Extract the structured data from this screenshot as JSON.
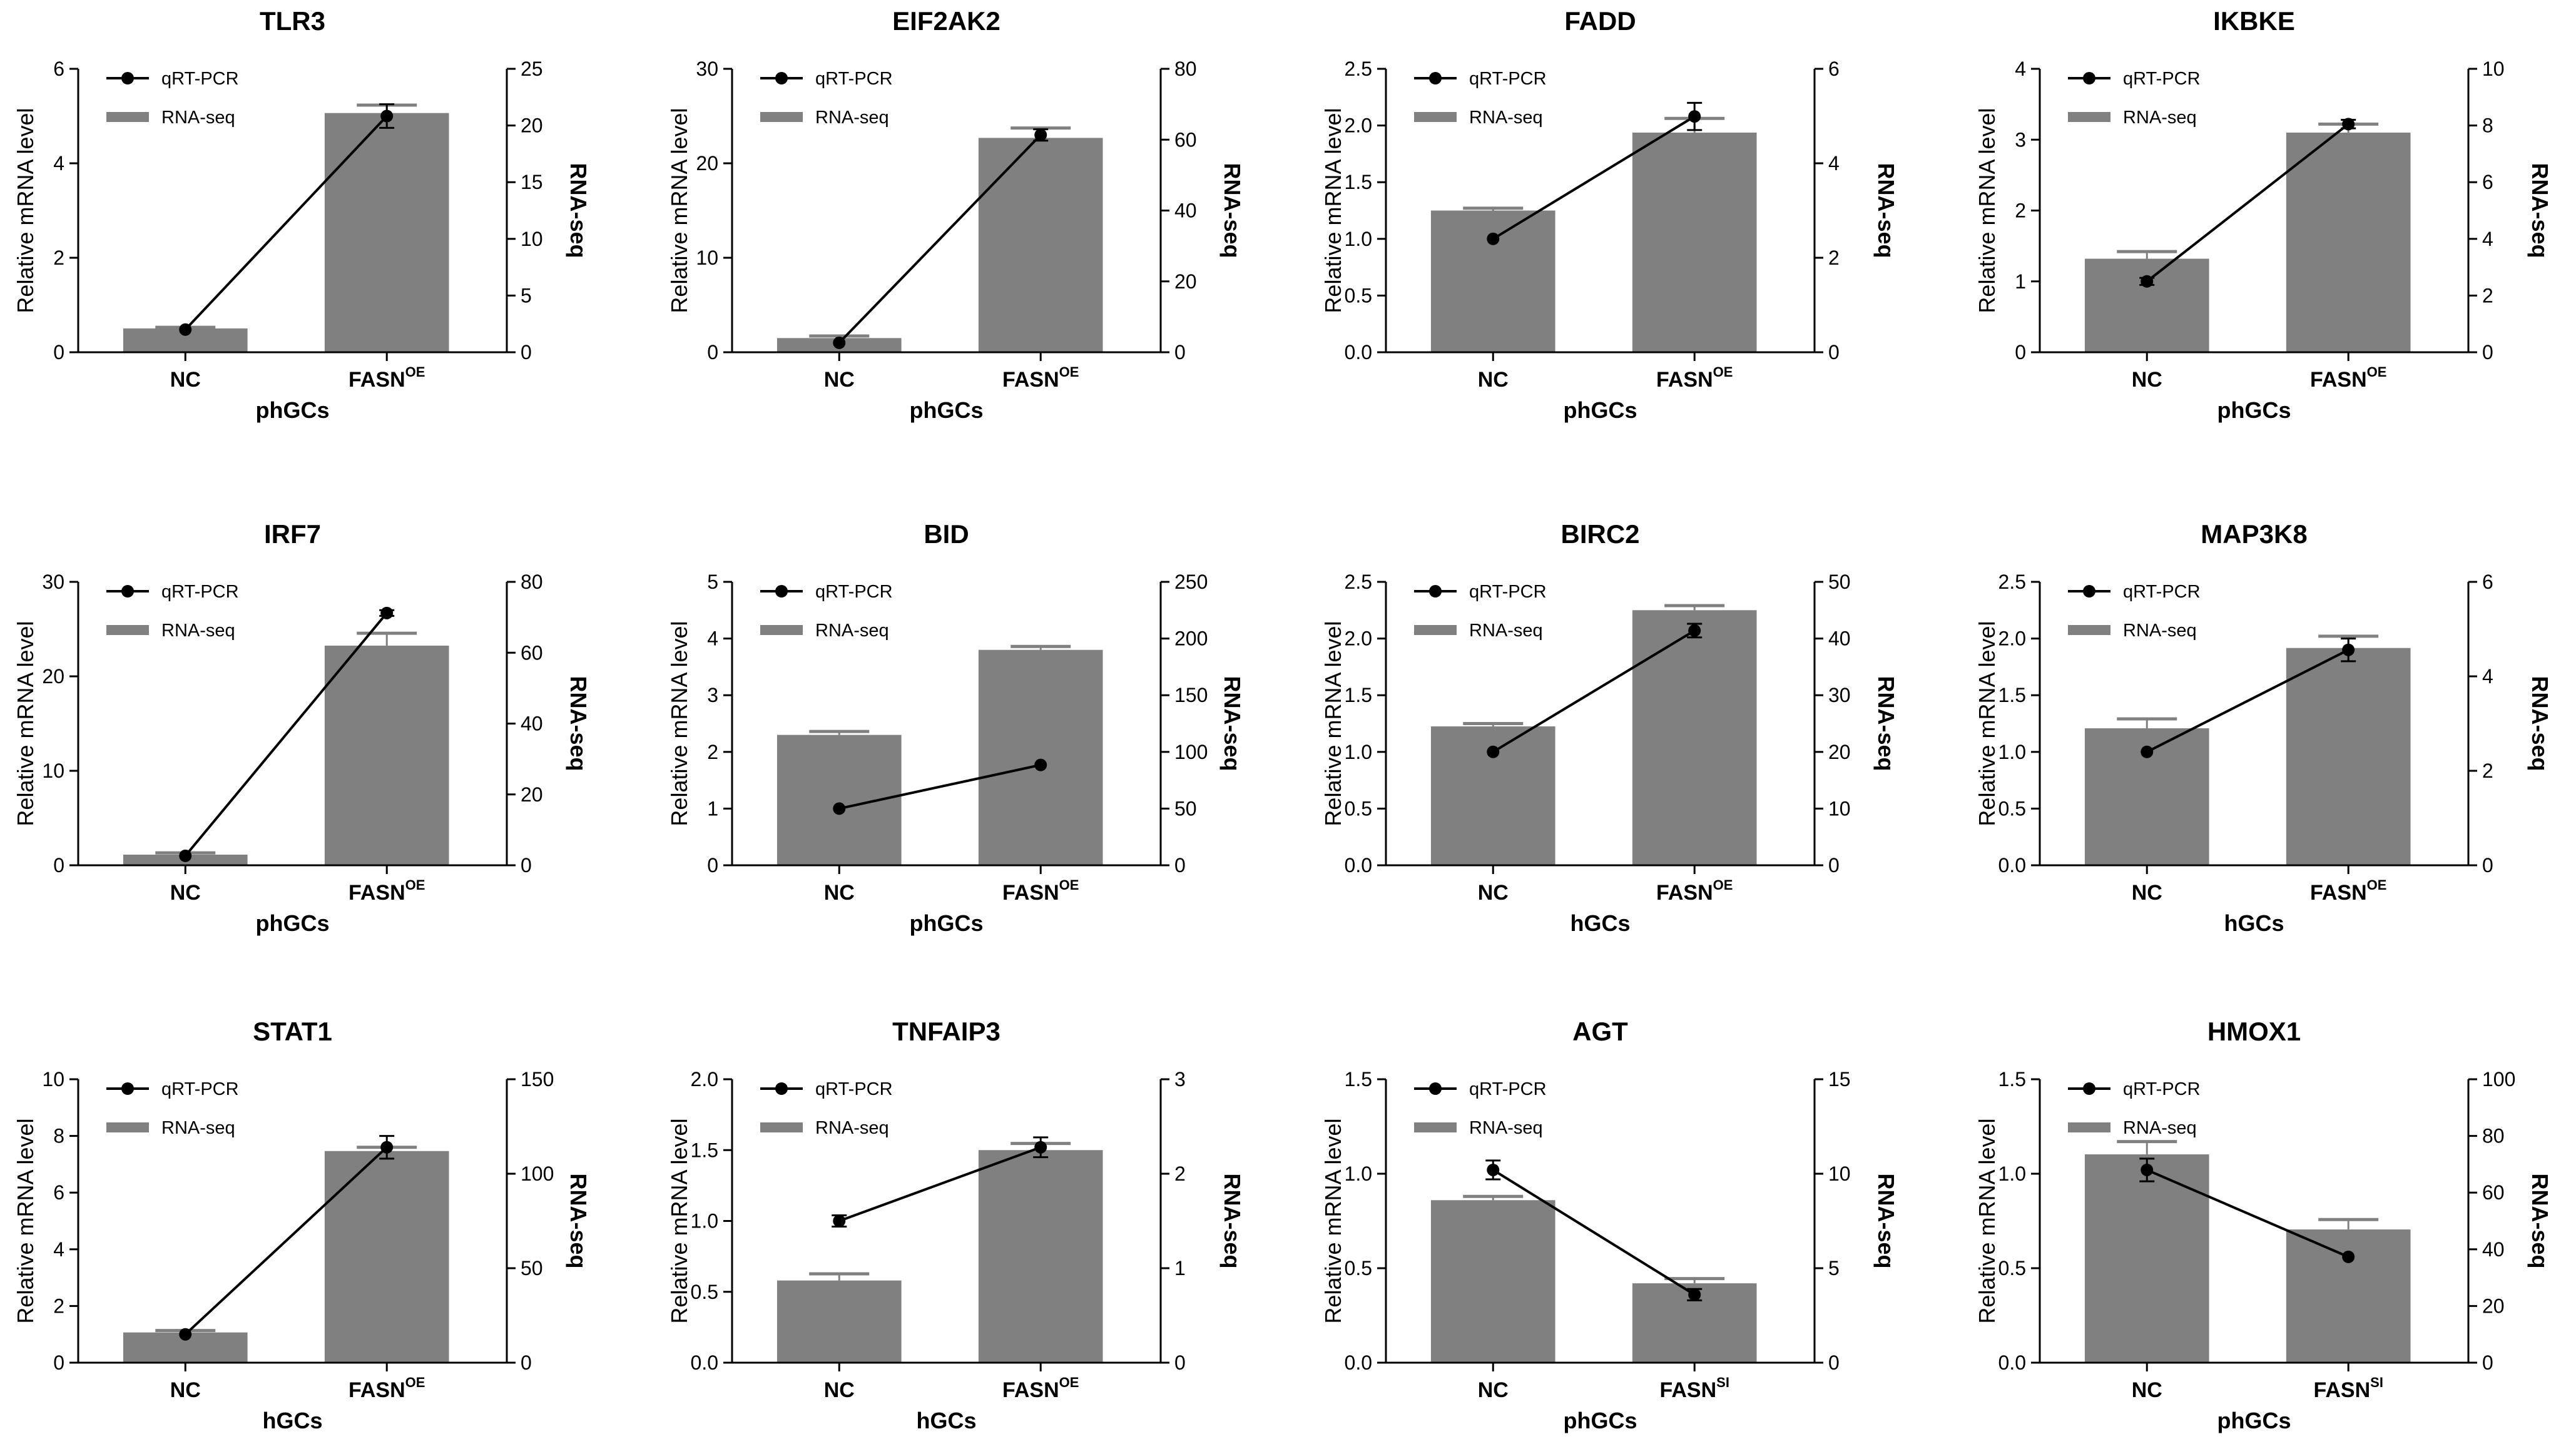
{
  "chart_data": [
    {
      "type": "bar+line",
      "title": "TLR3",
      "xlabel": "phGCs",
      "ylabel": "Relative mRNA level",
      "y2label": "RNA-seq",
      "categories": [
        {
          "base": "NC",
          "sup": ""
        },
        {
          "base": "FASN",
          "sup": "OE"
        }
      ],
      "ylim": [
        0,
        6
      ],
      "yticks": [
        0,
        2,
        4,
        6
      ],
      "y2lim": [
        0,
        25
      ],
      "y2ticks": [
        0,
        5,
        10,
        15,
        20,
        25
      ],
      "series": [
        {
          "name": "qRT-PCR",
          "type": "line",
          "axis": "left",
          "values": [
            0.48,
            5.0
          ],
          "errors": [
            0.0,
            0.25
          ]
        },
        {
          "name": "RNA-seq",
          "type": "bar",
          "axis": "right",
          "values": [
            2.1,
            21.1
          ],
          "errors": [
            0.1,
            0.7
          ]
        }
      ]
    },
    {
      "type": "bar+line",
      "title": "EIF2AK2",
      "xlabel": "phGCs",
      "ylabel": "Relative mRNA level",
      "y2label": "RNA-seq",
      "categories": [
        {
          "base": "NC",
          "sup": ""
        },
        {
          "base": "FASN",
          "sup": "OE"
        }
      ],
      "ylim": [
        0,
        30
      ],
      "yticks": [
        0,
        10,
        20,
        30
      ],
      "y2lim": [
        0,
        80
      ],
      "y2ticks": [
        0,
        20,
        40,
        60,
        80
      ],
      "series": [
        {
          "name": "qRT-PCR",
          "type": "line",
          "axis": "left",
          "values": [
            1.0,
            23.0
          ],
          "errors": [
            0.0,
            0.6
          ]
        },
        {
          "name": "RNA-seq",
          "type": "bar",
          "axis": "right",
          "values": [
            4.0,
            60.5
          ],
          "errors": [
            0.6,
            2.8
          ]
        }
      ]
    },
    {
      "type": "bar+line",
      "title": "FADD",
      "xlabel": "phGCs",
      "ylabel": "Relative mRNA level",
      "y2label": "RNA-seq",
      "categories": [
        {
          "base": "NC",
          "sup": ""
        },
        {
          "base": "FASN",
          "sup": "OE"
        }
      ],
      "ylim": [
        0,
        2.5
      ],
      "yticks": [
        "0.0",
        "0.5",
        "1.0",
        "1.5",
        "2.0",
        "2.5"
      ],
      "y2lim": [
        0,
        6
      ],
      "y2ticks": [
        0,
        2,
        4,
        6
      ],
      "series": [
        {
          "name": "qRT-PCR",
          "type": "line",
          "axis": "left",
          "values": [
            1.0,
            2.08
          ],
          "errors": [
            0.0,
            0.12
          ]
        },
        {
          "name": "RNA-seq",
          "type": "bar",
          "axis": "right",
          "values": [
            3.0,
            4.65
          ],
          "errors": [
            0.05,
            0.3
          ]
        }
      ]
    },
    {
      "type": "bar+line",
      "title": "IKBKE",
      "xlabel": "phGCs",
      "ylabel": "Relative mRNA level",
      "y2label": "RNA-seq",
      "categories": [
        {
          "base": "NC",
          "sup": ""
        },
        {
          "base": "FASN",
          "sup": "OE"
        }
      ],
      "ylim": [
        0,
        4
      ],
      "yticks": [
        0,
        1,
        2,
        3,
        4
      ],
      "y2lim": [
        0,
        10
      ],
      "y2ticks": [
        0,
        2,
        4,
        6,
        8,
        10
      ],
      "series": [
        {
          "name": "qRT-PCR",
          "type": "line",
          "axis": "left",
          "values": [
            1.0,
            3.22
          ],
          "errors": [
            0.05,
            0.06
          ]
        },
        {
          "name": "RNA-seq",
          "type": "bar",
          "axis": "right",
          "values": [
            3.3,
            7.75
          ],
          "errors": [
            0.25,
            0.3
          ]
        }
      ]
    },
    {
      "type": "bar+line",
      "title": "IRF7",
      "xlabel": "phGCs",
      "ylabel": "Relative mRNA level",
      "y2label": "RNA-seq",
      "categories": [
        {
          "base": "NC",
          "sup": ""
        },
        {
          "base": "FASN",
          "sup": "OE"
        }
      ],
      "ylim": [
        0,
        30
      ],
      "yticks": [
        0,
        10,
        20,
        30
      ],
      "y2lim": [
        0,
        80
      ],
      "y2ticks": [
        0,
        20,
        40,
        60,
        80
      ],
      "series": [
        {
          "name": "qRT-PCR",
          "type": "line",
          "axis": "left",
          "values": [
            1.0,
            26.7
          ],
          "errors": [
            0.0,
            0.3
          ]
        },
        {
          "name": "RNA-seq",
          "type": "bar",
          "axis": "right",
          "values": [
            3.0,
            62.0
          ],
          "errors": [
            0.5,
            3.5
          ]
        }
      ]
    },
    {
      "type": "bar+line",
      "title": "BID",
      "xlabel": "phGCs",
      "ylabel": "Relative mRNA level",
      "y2label": "RNA-seq",
      "categories": [
        {
          "base": "NC",
          "sup": ""
        },
        {
          "base": "FASN",
          "sup": "OE"
        }
      ],
      "ylim": [
        0,
        5
      ],
      "yticks": [
        0,
        1,
        2,
        3,
        4,
        5
      ],
      "y2lim": [
        0,
        250
      ],
      "y2ticks": [
        0,
        50,
        100,
        150,
        200,
        250
      ],
      "series": [
        {
          "name": "qRT-PCR",
          "type": "line",
          "axis": "left",
          "values": [
            1.0,
            1.77
          ],
          "errors": [
            0.0,
            0.0
          ]
        },
        {
          "name": "RNA-seq",
          "type": "bar",
          "axis": "right",
          "values": [
            115,
            190
          ],
          "errors": [
            3,
            3
          ]
        }
      ]
    },
    {
      "type": "bar+line",
      "title": "BIRC2",
      "xlabel": "hGCs",
      "ylabel": "Relative mRNA level",
      "y2label": "RNA-seq",
      "categories": [
        {
          "base": "NC",
          "sup": ""
        },
        {
          "base": "FASN",
          "sup": "OE"
        }
      ],
      "ylim": [
        0,
        2.5
      ],
      "yticks": [
        "0.0",
        "0.5",
        "1.0",
        "1.5",
        "2.0",
        "2.5"
      ],
      "y2lim": [
        0,
        50
      ],
      "y2ticks": [
        0,
        10,
        20,
        30,
        40,
        50
      ],
      "series": [
        {
          "name": "qRT-PCR",
          "type": "line",
          "axis": "left",
          "values": [
            1.0,
            2.07
          ],
          "errors": [
            0.0,
            0.06
          ]
        },
        {
          "name": "RNA-seq",
          "type": "bar",
          "axis": "right",
          "values": [
            24.5,
            45.0
          ],
          "errors": [
            0.5,
            0.8
          ]
        }
      ]
    },
    {
      "type": "bar+line",
      "title": "MAP3K8",
      "xlabel": "hGCs",
      "ylabel": "Relative mRNA level",
      "y2label": "RNA-seq",
      "categories": [
        {
          "base": "NC",
          "sup": ""
        },
        {
          "base": "FASN",
          "sup": "OE"
        }
      ],
      "ylim": [
        0,
        2.5
      ],
      "yticks": [
        "0.0",
        "0.5",
        "1.0",
        "1.5",
        "2.0",
        "2.5"
      ],
      "y2lim": [
        0,
        6
      ],
      "y2ticks": [
        0,
        2,
        4,
        6
      ],
      "series": [
        {
          "name": "qRT-PCR",
          "type": "line",
          "axis": "left",
          "values": [
            1.0,
            1.9
          ],
          "errors": [
            0.0,
            0.1
          ]
        },
        {
          "name": "RNA-seq",
          "type": "bar",
          "axis": "right",
          "values": [
            2.9,
            4.6
          ],
          "errors": [
            0.2,
            0.25
          ]
        }
      ]
    },
    {
      "type": "bar+line",
      "title": "STAT1",
      "xlabel": "hGCs",
      "ylabel": "Relative mRNA level",
      "y2label": "RNA-seq",
      "categories": [
        {
          "base": "NC",
          "sup": ""
        },
        {
          "base": "FASN",
          "sup": "OE"
        }
      ],
      "ylim": [
        0,
        10
      ],
      "yticks": [
        0,
        2,
        4,
        6,
        8,
        10
      ],
      "y2lim": [
        0,
        150
      ],
      "y2ticks": [
        0,
        50,
        100,
        150
      ],
      "series": [
        {
          "name": "qRT-PCR",
          "type": "line",
          "axis": "left",
          "values": [
            1.0,
            7.6
          ],
          "errors": [
            0.0,
            0.4
          ]
        },
        {
          "name": "RNA-seq",
          "type": "bar",
          "axis": "right",
          "values": [
            16,
            112
          ],
          "errors": [
            1,
            2
          ]
        }
      ]
    },
    {
      "type": "bar+line",
      "title": "TNFAIP3",
      "xlabel": "hGCs",
      "ylabel": "Relative mRNA level",
      "y2label": "RNA-seq",
      "categories": [
        {
          "base": "NC",
          "sup": ""
        },
        {
          "base": "FASN",
          "sup": "OE"
        }
      ],
      "ylim": [
        0,
        2.0
      ],
      "yticks": [
        "0.0",
        "0.5",
        "1.0",
        "1.5",
        "2.0"
      ],
      "y2lim": [
        0,
        3
      ],
      "y2ticks": [
        0,
        1,
        2,
        3
      ],
      "series": [
        {
          "name": "qRT-PCR",
          "type": "line",
          "axis": "left",
          "values": [
            1.0,
            1.52
          ],
          "errors": [
            0.04,
            0.07
          ]
        },
        {
          "name": "RNA-seq",
          "type": "bar",
          "axis": "right",
          "values": [
            0.87,
            2.25
          ],
          "errors": [
            0.07,
            0.07
          ]
        }
      ]
    },
    {
      "type": "bar+line",
      "title": "AGT",
      "xlabel": "phGCs",
      "ylabel": "Relative mRNA level",
      "y2label": "RNA-seq",
      "categories": [
        {
          "base": "NC",
          "sup": ""
        },
        {
          "base": "FASN",
          "sup": "SI"
        }
      ],
      "ylim": [
        0,
        1.5
      ],
      "yticks": [
        "0.0",
        "0.5",
        "1.0",
        "1.5"
      ],
      "y2lim": [
        0,
        15
      ],
      "y2ticks": [
        0,
        5,
        10,
        15
      ],
      "series": [
        {
          "name": "qRT-PCR",
          "type": "line",
          "axis": "left",
          "values": [
            1.02,
            0.36
          ],
          "errors": [
            0.05,
            0.03
          ]
        },
        {
          "name": "RNA-seq",
          "type": "bar",
          "axis": "right",
          "values": [
            8.6,
            4.2
          ],
          "errors": [
            0.2,
            0.25
          ]
        }
      ]
    },
    {
      "type": "bar+line",
      "title": "HMOX1",
      "xlabel": "phGCs",
      "ylabel": "Relative mRNA level",
      "y2label": "RNA-seq",
      "categories": [
        {
          "base": "NC",
          "sup": ""
        },
        {
          "base": "FASN",
          "sup": "SI"
        }
      ],
      "ylim": [
        0,
        1.5
      ],
      "yticks": [
        "0.0",
        "0.5",
        "1.0",
        "1.5"
      ],
      "y2lim": [
        0,
        100
      ],
      "y2ticks": [
        0,
        20,
        40,
        60,
        80,
        100
      ],
      "series": [
        {
          "name": "qRT-PCR",
          "type": "line",
          "axis": "left",
          "values": [
            1.02,
            0.56
          ],
          "errors": [
            0.06,
            0.0
          ]
        },
        {
          "name": "RNA-seq",
          "type": "bar",
          "axis": "right",
          "values": [
            73.5,
            47.0
          ],
          "errors": [
            4.5,
            3.5
          ]
        }
      ]
    }
  ],
  "colors": {
    "bar": "#808080",
    "line": "#000000",
    "axis": "#000000"
  }
}
